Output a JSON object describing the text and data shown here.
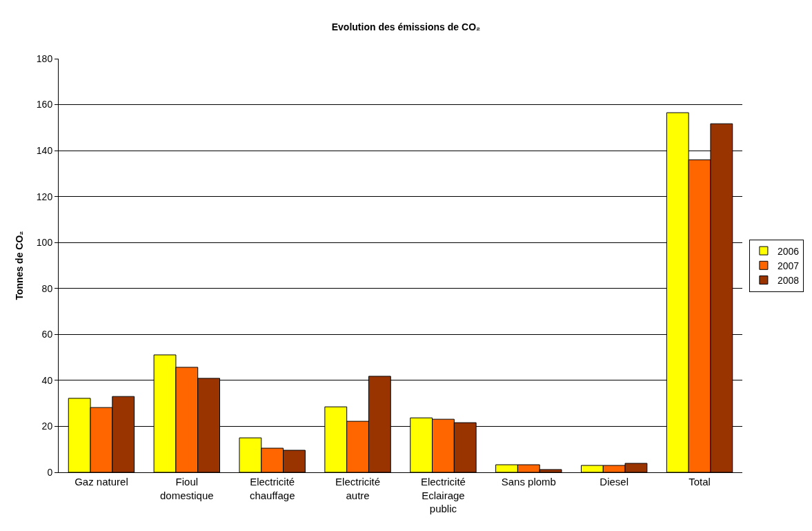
{
  "chart_data": {
    "type": "bar",
    "title": "Evolution des émissions de CO₂",
    "ylabel": "Tonnes de CO₂",
    "categories": [
      "Gaz naturel",
      "Fioul domestique",
      "Electricité chauffage",
      "Electricité autre",
      "Electricité Eclairage public",
      "Sans plomb",
      "Diesel",
      "Total"
    ],
    "series": [
      {
        "name": "2006",
        "color": "#ffff00",
        "values": [
          32.2,
          51.1,
          15,
          28.5,
          23.7,
          3.3,
          3,
          156.5
        ]
      },
      {
        "name": "2007",
        "color": "#ff6600",
        "values": [
          28.2,
          45.7,
          10.5,
          22.2,
          23.1,
          3.3,
          3,
          136
        ]
      },
      {
        "name": "2008",
        "color": "#993300",
        "values": [
          33,
          40.9,
          9.6,
          41.8,
          21.6,
          1.2,
          3.9,
          151.7
        ]
      }
    ],
    "ylim": [
      0,
      180
    ],
    "yticks": [
      0,
      20,
      40,
      60,
      80,
      100,
      120,
      140,
      160,
      180
    ],
    "grid": "y",
    "legend": "right"
  }
}
